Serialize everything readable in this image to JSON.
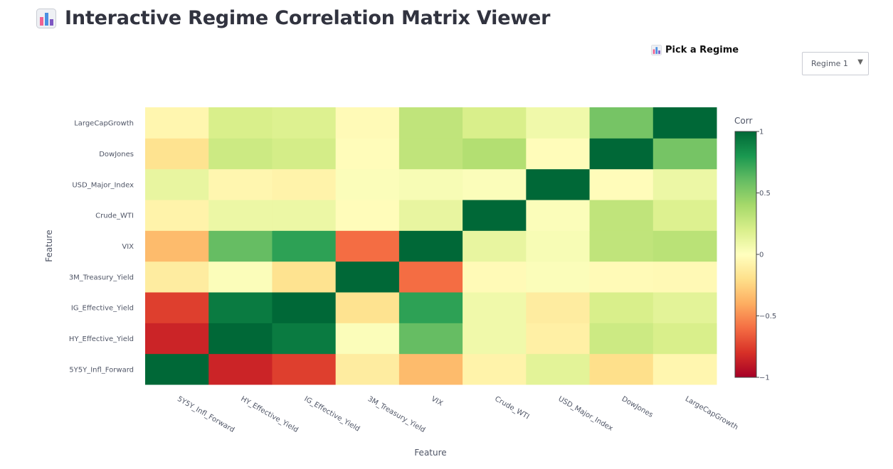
{
  "header": {
    "title": "Interactive Regime Correlation Matrix Viewer",
    "icon": "bar-chart-icon"
  },
  "picker": {
    "label": "Pick a Regime",
    "selected": "Regime 1",
    "icon": "bar-chart-icon"
  },
  "chart_data": {
    "type": "heatmap",
    "title": "",
    "xlabel": "Feature",
    "ylabel": "Feature",
    "colorbar_title": "Corr",
    "zrange": [
      -1,
      1
    ],
    "colorbar_ticks": [
      1,
      0.5,
      0,
      -0.5,
      -1
    ],
    "colorbar_tick_labels": [
      "1",
      "0.5",
      "0",
      "−0.5",
      "−1"
    ],
    "colorscale": "RdYlGn",
    "x_categories": [
      "5Y5Y_Infl_Forward",
      "HY_Effective_Yield",
      "IG_Effective_Yield",
      "3M_Treasury_Yield",
      "VIX",
      "Crude_WTI",
      "USD_Major_Index",
      "DowJones",
      "LargeCapGrowth"
    ],
    "y_categories": [
      "5Y5Y_Infl_Forward",
      "HY_Effective_Yield",
      "IG_Effective_Yield",
      "3M_Treasury_Yield",
      "VIX",
      "Crude_WTI",
      "USD_Major_Index",
      "DowJones",
      "LargeCapGrowth"
    ],
    "z": [
      [
        1.0,
        -0.85,
        -0.75,
        -0.12,
        -0.35,
        -0.08,
        0.15,
        -0.2,
        -0.06
      ],
      [
        -0.85,
        1.0,
        0.92,
        0.02,
        0.6,
        0.08,
        -0.1,
        0.25,
        0.2
      ],
      [
        -0.75,
        0.92,
        1.0,
        -0.18,
        0.75,
        0.08,
        -0.12,
        0.2,
        0.15
      ],
      [
        -0.12,
        0.02,
        -0.18,
        1.0,
        -0.6,
        -0.03,
        0.02,
        -0.03,
        -0.04
      ],
      [
        -0.35,
        0.6,
        0.75,
        -0.6,
        1.0,
        0.12,
        0.04,
        0.3,
        0.32
      ],
      [
        -0.08,
        0.1,
        0.1,
        -0.02,
        0.12,
        1.0,
        0.02,
        0.3,
        0.18
      ],
      [
        0.12,
        -0.06,
        -0.08,
        0.02,
        0.04,
        0.02,
        1.0,
        -0.02,
        0.1
      ],
      [
        -0.18,
        0.25,
        0.22,
        -0.02,
        0.3,
        0.35,
        -0.02,
        1.0,
        0.55
      ],
      [
        -0.06,
        0.2,
        0.18,
        -0.03,
        0.3,
        0.2,
        0.08,
        0.55,
        1.0
      ]
    ]
  }
}
